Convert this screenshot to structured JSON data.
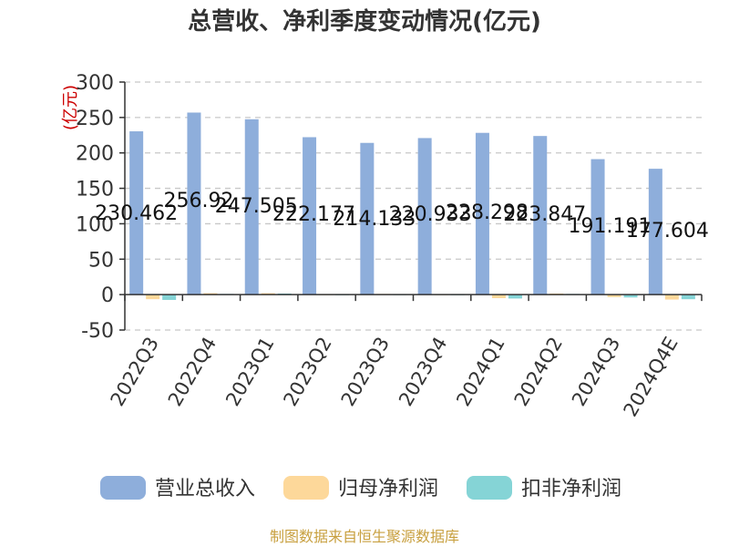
{
  "chart_data": {
    "type": "bar",
    "title": "总营收、净利季度变动情况(亿元)",
    "ylabel": "(亿元)",
    "xlabel": "",
    "ylim": [
      -50,
      300
    ],
    "yticks": [
      -50,
      0,
      50,
      100,
      150,
      200,
      250,
      300
    ],
    "grid": true,
    "legend_position": "bottom",
    "categories": [
      "2022Q3",
      "2022Q4",
      "2023Q1",
      "2023Q2",
      "2023Q3",
      "2023Q4",
      "2024Q1",
      "2024Q2",
      "2024Q3",
      "2024Q4E"
    ],
    "series": [
      {
        "name": "营业总收入",
        "color": "#8eaedb",
        "values": [
          230.462,
          256.92,
          247.505,
          222.177,
          214.133,
          220.933,
          228.298,
          223.847,
          191.191,
          177.604
        ],
        "labels": [
          "230.462",
          "256.92",
          "247.505",
          "222.177",
          "214.133",
          "220.933",
          "228.298",
          "223.847",
          "191.191",
          "177.604"
        ]
      },
      {
        "name": "归母净利润",
        "color": "#fdd89a",
        "values": [
          -6.5,
          2.0,
          2.0,
          0.5,
          1.0,
          0.5,
          -5.0,
          1.5,
          -3.5,
          -7.0
        ]
      },
      {
        "name": "扣非净利润",
        "color": "#85d4d6",
        "values": [
          -7.5,
          1.0,
          1.5,
          0.3,
          0.5,
          0.3,
          -5.5,
          1.0,
          -4.0,
          -6.5
        ]
      }
    ],
    "source": "制图数据来自恒生聚源数据库"
  }
}
